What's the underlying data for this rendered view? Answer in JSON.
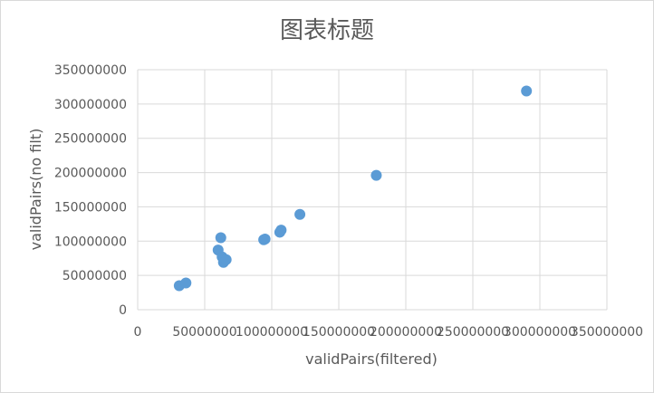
{
  "chart_data": {
    "type": "scatter",
    "title": "图表标题",
    "xlabel": "validPairs(filtered)",
    "ylabel": "validPairs(no filt)",
    "xlim": [
      0,
      350000000
    ],
    "ylim": [
      0,
      350000000
    ],
    "x_ticks": [
      0,
      50000000,
      100000000,
      150000000,
      200000000,
      250000000,
      300000000,
      350000000
    ],
    "y_ticks": [
      0,
      50000000,
      100000000,
      150000000,
      200000000,
      250000000,
      300000000,
      350000000
    ],
    "grid": true,
    "legend": "none",
    "color": "#5b9bd5",
    "points": [
      {
        "x": 31000000,
        "y": 35000000
      },
      {
        "x": 36000000,
        "y": 39000000
      },
      {
        "x": 60000000,
        "y": 87000000
      },
      {
        "x": 62000000,
        "y": 105000000
      },
      {
        "x": 63000000,
        "y": 77000000
      },
      {
        "x": 64000000,
        "y": 69000000
      },
      {
        "x": 66000000,
        "y": 73000000
      },
      {
        "x": 94000000,
        "y": 102000000
      },
      {
        "x": 95000000,
        "y": 103000000
      },
      {
        "x": 106000000,
        "y": 113000000
      },
      {
        "x": 107000000,
        "y": 116000000
      },
      {
        "x": 121000000,
        "y": 139000000
      },
      {
        "x": 178000000,
        "y": 196000000
      },
      {
        "x": 290000000,
        "y": 319000000
      }
    ]
  }
}
